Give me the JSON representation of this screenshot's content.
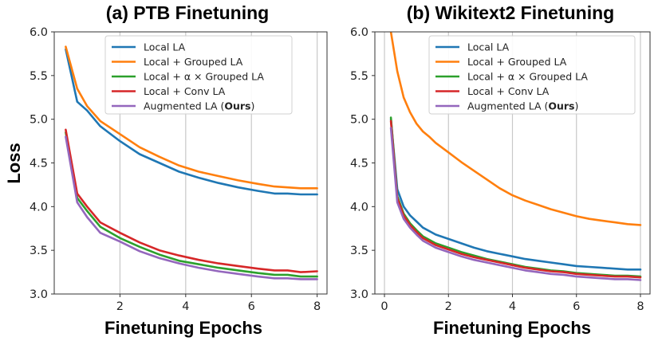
{
  "figure": {
    "ylabel": "Loss",
    "legend_entries": [
      {
        "label": "Local LA",
        "color": "#1f77b4"
      },
      {
        "label": "Local + Grouped LA",
        "color": "#ff7f0e"
      },
      {
        "label": "Local + α × Grouped LA",
        "color": "#2ca02c"
      },
      {
        "label": "Local + Conv LA",
        "color": "#d62728"
      },
      {
        "label": "Augmented LA (Ours)",
        "color": "#9467bd"
      }
    ]
  },
  "chart_data": [
    {
      "type": "line",
      "title": "(a) PTB Finetuning",
      "xlabel": "Finetuning Epochs",
      "ylabel": "Loss",
      "xlim": [
        0,
        8.3
      ],
      "ylim": [
        3.0,
        6.0
      ],
      "xticks": [
        2,
        4,
        6,
        8
      ],
      "yticks": [
        3.0,
        3.5,
        4.0,
        4.5,
        5.0,
        5.5,
        6.0
      ],
      "grid": "x-only",
      "legend_position": "top-right",
      "series": [
        {
          "name": "Local LA",
          "color": "#1f77b4",
          "x": [
            0.35,
            0.7,
            1.0,
            1.4,
            2.0,
            2.6,
            3.2,
            3.8,
            4.4,
            5.0,
            5.6,
            6.2,
            6.7,
            7.1,
            7.5,
            8.0
          ],
          "y": [
            5.8,
            5.2,
            5.1,
            4.92,
            4.75,
            4.6,
            4.5,
            4.4,
            4.33,
            4.27,
            4.22,
            4.18,
            4.15,
            4.15,
            4.14,
            4.14
          ]
        },
        {
          "name": "Local + Grouped LA",
          "color": "#ff7f0e",
          "x": [
            0.35,
            0.7,
            1.0,
            1.4,
            2.0,
            2.6,
            3.2,
            3.8,
            4.4,
            5.0,
            5.6,
            6.2,
            6.7,
            7.1,
            7.5,
            8.0
          ],
          "y": [
            5.83,
            5.35,
            5.15,
            4.98,
            4.83,
            4.68,
            4.57,
            4.47,
            4.4,
            4.35,
            4.3,
            4.26,
            4.23,
            4.22,
            4.21,
            4.21
          ]
        },
        {
          "name": "Local + α × Grouped LA",
          "color": "#2ca02c",
          "x": [
            0.35,
            0.7,
            1.0,
            1.4,
            2.0,
            2.6,
            3.2,
            3.8,
            4.4,
            5.0,
            5.6,
            6.2,
            6.7,
            7.1,
            7.5,
            8.0
          ],
          "y": [
            4.85,
            4.1,
            3.95,
            3.77,
            3.64,
            3.54,
            3.45,
            3.38,
            3.34,
            3.3,
            3.27,
            3.24,
            3.22,
            3.22,
            3.2,
            3.2
          ]
        },
        {
          "name": "Local + Conv LA",
          "color": "#d62728",
          "x": [
            0.35,
            0.7,
            1.0,
            1.4,
            2.0,
            2.6,
            3.2,
            3.8,
            4.4,
            5.0,
            5.6,
            6.2,
            6.7,
            7.1,
            7.5,
            8.0
          ],
          "y": [
            4.88,
            4.15,
            4.0,
            3.82,
            3.7,
            3.59,
            3.5,
            3.44,
            3.39,
            3.35,
            3.32,
            3.29,
            3.27,
            3.27,
            3.25,
            3.26
          ]
        },
        {
          "name": "Augmented LA (Ours)",
          "color": "#9467bd",
          "x": [
            0.35,
            0.7,
            1.0,
            1.4,
            2.0,
            2.6,
            3.2,
            3.8,
            4.4,
            5.0,
            5.6,
            6.2,
            6.7,
            7.1,
            7.5,
            8.0
          ],
          "y": [
            4.8,
            4.05,
            3.88,
            3.7,
            3.6,
            3.49,
            3.41,
            3.35,
            3.3,
            3.26,
            3.23,
            3.2,
            3.18,
            3.18,
            3.17,
            3.17
          ]
        }
      ]
    },
    {
      "type": "line",
      "title": "(b) Wikitext2 Finetuning",
      "xlabel": "Finetuning Epochs",
      "ylabel": "",
      "xlim": [
        -0.3,
        8.3
      ],
      "ylim": [
        3.0,
        6.0
      ],
      "xticks": [
        0,
        2,
        4,
        6,
        8
      ],
      "yticks": [
        3.0,
        3.5,
        4.0,
        4.5,
        5.0,
        5.5,
        6.0
      ],
      "grid": "x-only",
      "legend_position": "top-right",
      "series": [
        {
          "name": "Local LA",
          "color": "#1f77b4",
          "x": [
            0.2,
            0.4,
            0.6,
            0.8,
            1.0,
            1.2,
            1.4,
            1.6,
            2.0,
            2.4,
            2.8,
            3.2,
            3.6,
            4.0,
            4.4,
            4.8,
            5.2,
            5.6,
            6.0,
            6.4,
            6.8,
            7.2,
            7.6,
            8.0
          ],
          "y": [
            5.0,
            4.2,
            4.0,
            3.9,
            3.83,
            3.76,
            3.72,
            3.68,
            3.63,
            3.58,
            3.53,
            3.49,
            3.46,
            3.43,
            3.4,
            3.38,
            3.36,
            3.34,
            3.32,
            3.31,
            3.3,
            3.29,
            3.28,
            3.28
          ]
        },
        {
          "name": "Local + Grouped LA",
          "color": "#ff7f0e",
          "x": [
            0.2,
            0.4,
            0.6,
            0.8,
            1.0,
            1.2,
            1.4,
            1.6,
            2.0,
            2.4,
            2.8,
            3.2,
            3.6,
            4.0,
            4.4,
            4.8,
            5.2,
            5.6,
            6.0,
            6.4,
            6.8,
            7.2,
            7.6,
            8.0
          ],
          "y": [
            6.0,
            5.55,
            5.25,
            5.08,
            4.95,
            4.86,
            4.8,
            4.73,
            4.62,
            4.51,
            4.41,
            4.31,
            4.21,
            4.13,
            4.07,
            4.02,
            3.97,
            3.93,
            3.89,
            3.86,
            3.84,
            3.82,
            3.8,
            3.79
          ]
        },
        {
          "name": "Local + α × Grouped LA",
          "color": "#2ca02c",
          "x": [
            0.2,
            0.4,
            0.6,
            0.8,
            1.0,
            1.2,
            1.4,
            1.6,
            2.0,
            2.4,
            2.8,
            3.2,
            3.6,
            4.0,
            4.4,
            4.8,
            5.2,
            5.6,
            6.0,
            6.4,
            6.8,
            7.2,
            7.6,
            8.0
          ],
          "y": [
            5.02,
            4.12,
            3.92,
            3.81,
            3.73,
            3.66,
            3.62,
            3.58,
            3.53,
            3.48,
            3.44,
            3.4,
            3.37,
            3.34,
            3.31,
            3.29,
            3.27,
            3.26,
            3.24,
            3.23,
            3.22,
            3.21,
            3.21,
            3.2
          ]
        },
        {
          "name": "Local + Conv LA",
          "color": "#d62728",
          "x": [
            0.2,
            0.4,
            0.6,
            0.8,
            1.0,
            1.2,
            1.4,
            1.6,
            2.0,
            2.4,
            2.8,
            3.2,
            3.6,
            4.0,
            4.4,
            4.8,
            5.2,
            5.6,
            6.0,
            6.4,
            6.8,
            7.2,
            7.6,
            8.0
          ],
          "y": [
            4.98,
            4.1,
            3.9,
            3.79,
            3.71,
            3.64,
            3.6,
            3.56,
            3.51,
            3.46,
            3.42,
            3.39,
            3.36,
            3.33,
            3.3,
            3.28,
            3.26,
            3.25,
            3.23,
            3.22,
            3.21,
            3.2,
            3.2,
            3.19
          ]
        },
        {
          "name": "Augmented LA (Ours)",
          "color": "#9467bd",
          "x": [
            0.2,
            0.4,
            0.6,
            0.8,
            1.0,
            1.2,
            1.4,
            1.6,
            2.0,
            2.4,
            2.8,
            3.2,
            3.6,
            4.0,
            4.4,
            4.8,
            5.2,
            5.6,
            6.0,
            6.4,
            6.8,
            7.2,
            7.6,
            8.0
          ],
          "y": [
            4.9,
            4.05,
            3.86,
            3.76,
            3.68,
            3.61,
            3.57,
            3.53,
            3.48,
            3.43,
            3.39,
            3.36,
            3.33,
            3.3,
            3.27,
            3.25,
            3.23,
            3.22,
            3.2,
            3.19,
            3.18,
            3.17,
            3.17,
            3.16
          ]
        }
      ]
    }
  ]
}
